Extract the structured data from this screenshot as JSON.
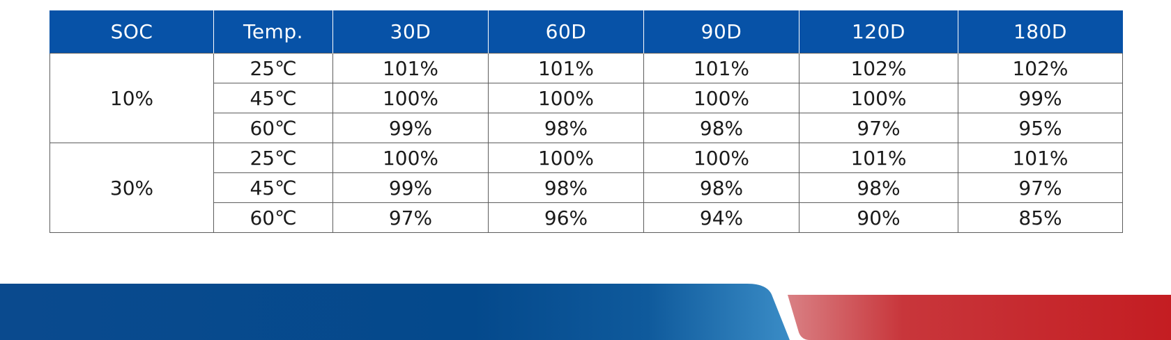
{
  "table": {
    "headers": [
      "SOC",
      "Temp.",
      "30D",
      "60D",
      "90D",
      "120D",
      "180D"
    ],
    "groups": [
      {
        "soc": "10%",
        "rows": [
          {
            "temp": "25℃",
            "values": [
              "101%",
              "101%",
              "101%",
              "102%",
              "102%"
            ]
          },
          {
            "temp": "45℃",
            "values": [
              "100%",
              "100%",
              "100%",
              "100%",
              "99%"
            ]
          },
          {
            "temp": "60℃",
            "values": [
              "99%",
              "98%",
              "98%",
              "97%",
              "95%"
            ]
          }
        ]
      },
      {
        "soc": "30%",
        "rows": [
          {
            "temp": "25℃",
            "values": [
              "100%",
              "100%",
              "100%",
              "101%",
              "101%"
            ]
          },
          {
            "temp": "45℃",
            "values": [
              "99%",
              "98%",
              "98%",
              "98%",
              "97%"
            ]
          },
          {
            "temp": "60℃",
            "values": [
              "97%",
              "96%",
              "94%",
              "90%",
              "85%"
            ]
          }
        ]
      }
    ]
  },
  "colors": {
    "header_bg": "#0752a7",
    "header_text": "#ffffff",
    "grid_line": "#5c5c5c",
    "banner_blue": "#04498c",
    "banner_red": "#c41d22"
  }
}
